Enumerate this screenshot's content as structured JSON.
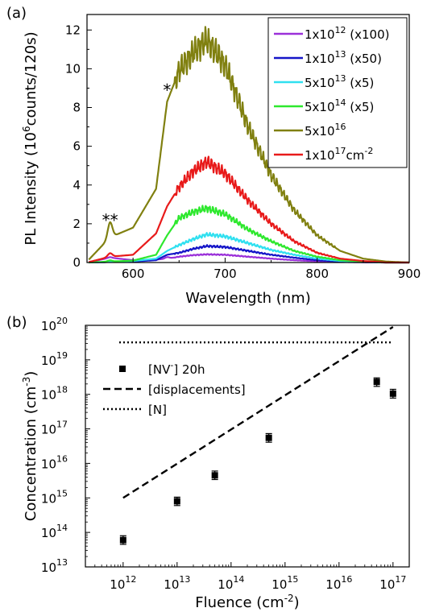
{
  "chart_data": [
    {
      "type": "line",
      "panel_label": "(a)",
      "xlabel": "Wavelength (nm)",
      "ylabel": "PL Intensity (10^6counts/120s)",
      "ylabel_parts": {
        "pre": "PL Intensity (10",
        "sup": "6",
        "post": "counts/120s)"
      },
      "xlim": [
        550,
        900
      ],
      "ylim": [
        0,
        12.8
      ],
      "xticks": [
        600,
        700,
        800,
        900
      ],
      "yticks": [
        0,
        2,
        4,
        6,
        8,
        10,
        12
      ],
      "grid": false,
      "legend_position": "top-right",
      "annotations": [
        {
          "text": "**",
          "x": 575,
          "y": 1.9
        },
        {
          "text": "*",
          "x": 637,
          "y": 8.6
        }
      ],
      "series": [
        {
          "legend": {
            "base": "1x10",
            "sup": "12",
            "tail": " (x100)"
          },
          "color": "#9b30d9",
          "peak": 0.42,
          "zpl": 0.05,
          "zpl2": 0.28,
          "plateau": 0.3,
          "x": [
            550,
            575,
            600,
            625,
            637,
            650,
            665,
            680,
            700,
            725,
            750,
            775,
            800,
            825,
            850,
            875,
            900
          ],
          "values": [
            0.0,
            0.25,
            0.12,
            0.15,
            0.2,
            0.3,
            0.38,
            0.42,
            0.4,
            0.3,
            0.2,
            0.12,
            0.06,
            0.03,
            0.01,
            0.0,
            0.0
          ]
        },
        {
          "legend": {
            "base": "1x10",
            "sup": "13",
            "tail": " (x50)"
          },
          "color": "#1515c8",
          "peak": 0.85,
          "zpl": 0.05,
          "zpl2": 0.4,
          "plateau": 0.5,
          "x": [
            550,
            575,
            600,
            625,
            637,
            650,
            665,
            680,
            700,
            725,
            750,
            775,
            800,
            825,
            850,
            875,
            900
          ],
          "values": [
            0.0,
            0.02,
            0.05,
            0.12,
            0.4,
            0.5,
            0.7,
            0.85,
            0.8,
            0.6,
            0.4,
            0.25,
            0.12,
            0.05,
            0.02,
            0.0,
            0.0
          ]
        },
        {
          "legend": {
            "base": "5x10",
            "sup": "13",
            "tail": " (x5)"
          },
          "color": "#30e0f0",
          "peak": 1.45,
          "zpl": 0.05,
          "zpl2": 0.6,
          "plateau": 0.9,
          "x": [
            550,
            575,
            600,
            625,
            637,
            650,
            665,
            680,
            700,
            725,
            750,
            775,
            800,
            825,
            850,
            875,
            900
          ],
          "values": [
            0.0,
            0.03,
            0.08,
            0.2,
            0.6,
            0.9,
            1.2,
            1.45,
            1.35,
            1.0,
            0.65,
            0.4,
            0.2,
            0.08,
            0.03,
            0.0,
            0.0
          ]
        },
        {
          "legend": {
            "base": "5x10",
            "sup": "14",
            "tail": " (x5)"
          },
          "color": "#2ee82e",
          "peak": 2.8,
          "zpl": 0.1,
          "zpl2": 1.4,
          "plateau": 2.3,
          "x": [
            550,
            575,
            600,
            625,
            637,
            650,
            665,
            680,
            700,
            725,
            750,
            775,
            800,
            825,
            850,
            875,
            900
          ],
          "values": [
            0.0,
            0.05,
            0.1,
            0.4,
            1.4,
            2.3,
            2.6,
            2.8,
            2.5,
            1.7,
            1.1,
            0.6,
            0.3,
            0.12,
            0.05,
            0.0,
            0.0
          ]
        },
        {
          "legend": {
            "base": "5x10",
            "sup": "16",
            "tail": ""
          },
          "color": "#808010",
          "peak": 11.5,
          "zpl": 1.3,
          "zpl2": 8.3,
          "plateau": 9.9,
          "x": [
            550,
            575,
            600,
            625,
            637,
            650,
            665,
            680,
            700,
            725,
            750,
            775,
            800,
            825,
            850,
            875,
            900
          ],
          "values": [
            0.05,
            1.3,
            1.8,
            3.8,
            8.3,
            9.9,
            10.8,
            11.5,
            10.2,
            7.0,
            4.5,
            2.7,
            1.4,
            0.6,
            0.2,
            0.05,
            0.0
          ]
        },
        {
          "legend": {
            "base": "1x10",
            "sup": "17",
            "tail": "cm",
            "sup2": "-2"
          },
          "color": "#e81a1a",
          "peak": 5.2,
          "zpl": 0.3,
          "zpl2": 2.9,
          "plateau": 4.5,
          "x": [
            550,
            575,
            600,
            625,
            637,
            650,
            665,
            680,
            700,
            725,
            750,
            775,
            800,
            825,
            850,
            875,
            900
          ],
          "values": [
            0.0,
            0.3,
            0.4,
            1.5,
            2.9,
            3.9,
            4.7,
            5.2,
            4.6,
            3.2,
            2.0,
            1.1,
            0.5,
            0.2,
            0.08,
            0.0,
            0.0
          ]
        }
      ]
    },
    {
      "type": "scatter",
      "panel_label": "(b)",
      "xlabel": "Fluence (cm^-2)",
      "xlabel_parts": {
        "pre": "Fluence (cm",
        "sup": "-2",
        "post": ")"
      },
      "ylabel": "Concentration (cm^-3)",
      "ylabel_parts": {
        "pre": "Concentration (cm",
        "sup": "-3",
        "post": ")"
      },
      "xscale": "log",
      "yscale": "log",
      "xlim": [
        200000000000.0,
        2e+17
      ],
      "ylim": [
        10000000000000.0,
        1e+20
      ],
      "xtick_exponents": [
        12,
        13,
        14,
        15,
        16,
        17
      ],
      "ytick_exponents": [
        13,
        14,
        15,
        16,
        17,
        18,
        19,
        20
      ],
      "tick_base": "10",
      "grid": false,
      "legend_position": "upper-left",
      "legend": [
        {
          "key": "nv",
          "text_pre": "[NV",
          "text_sup": "-",
          "text_post": "] 20h",
          "style": "square-marker"
        },
        {
          "key": "displacements",
          "text": "[displacements]",
          "style": "dashed"
        },
        {
          "key": "n",
          "text": "[N]",
          "style": "dotted"
        }
      ],
      "nv_points": [
        {
          "x": 1000000000000.0,
          "y": 60000000000000.0,
          "err_low": 45000000000000.0,
          "err_high": 80000000000000.0
        },
        {
          "x": 10000000000000.0,
          "y": 800000000000000.0,
          "err_low": 600000000000000.0,
          "err_high": 1050000000000000.0
        },
        {
          "x": 50000000000000.0,
          "y": 4500000000000000.0,
          "err_low": 3400000000000000.0,
          "err_high": 6000000000000000.0
        },
        {
          "x": 500000000000000.0,
          "y": 5.5e+16,
          "err_low": 4.1e+16,
          "err_high": 7.3e+16
        },
        {
          "x": 5e+16,
          "y": 2.3e+18,
          "err_low": 1.7e+18,
          "err_high": 3e+18
        },
        {
          "x": 1e+17,
          "y": 1.05e+18,
          "err_low": 7.8e+17,
          "err_high": 1.4e+18
        }
      ],
      "displacements_line": {
        "x": [
          1000000000000.0,
          1e+17
        ],
        "y": [
          1000000000000000.0,
          9e+19
        ]
      },
      "n_line": {
        "x": [
          200000000000.0,
          1e+17
        ],
        "y": [
          3.2e+19,
          3.2e+19
        ]
      }
    }
  ]
}
